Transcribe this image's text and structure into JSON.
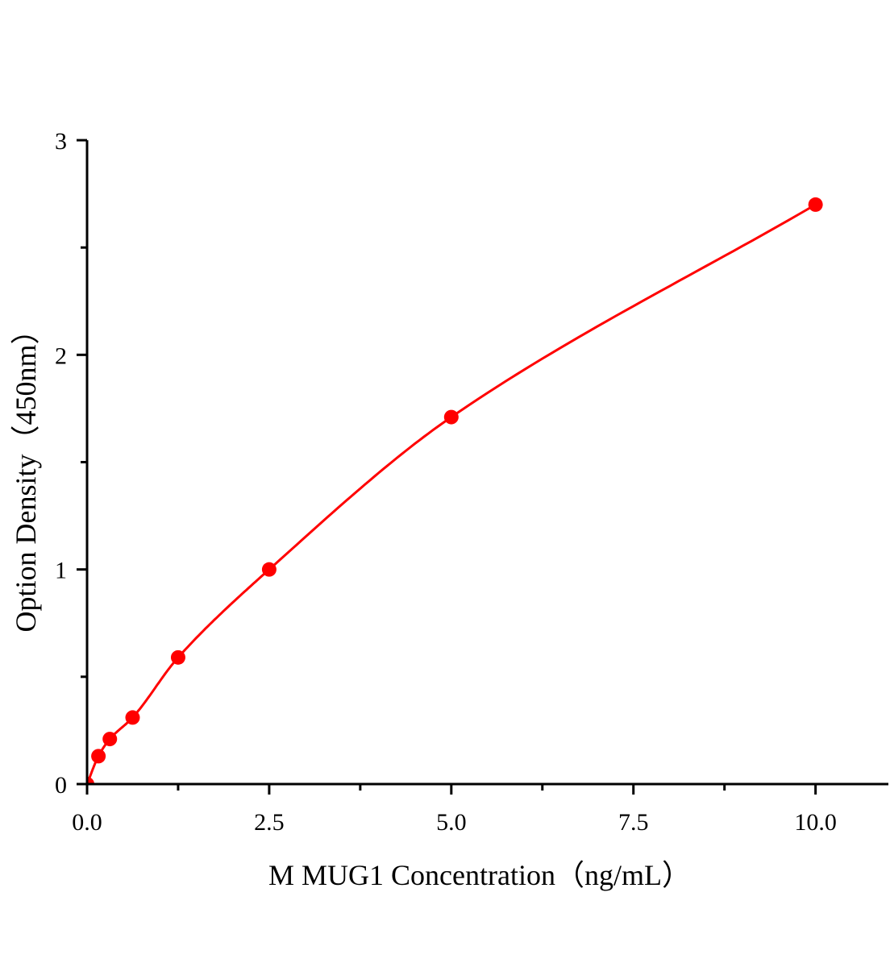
{
  "chart_data": {
    "type": "scatter",
    "title": "",
    "xlabel": "M MUG1 Concentration（ng/mL）",
    "ylabel": "Option Density（450nm）",
    "xlim": [
      0,
      11
    ],
    "ylim": [
      0,
      3
    ],
    "x_ticks": [
      "0.0",
      "2.5",
      "5.0",
      "7.5",
      "10.0"
    ],
    "x_tick_values": [
      0,
      2.5,
      5,
      7.5,
      10
    ],
    "x_minor_tick_values": [
      1.25,
      3.75,
      6.25,
      8.75
    ],
    "y_ticks": [
      "0",
      "1",
      "2",
      "3"
    ],
    "y_tick_values": [
      0,
      1,
      2,
      3
    ],
    "y_minor_tick_values": [
      0.5,
      1.5,
      2.5
    ],
    "grid": false,
    "legend": "none",
    "color": "#ff0000",
    "fit_curve": true,
    "series": [
      {
        "x": [
          0,
          0.156,
          0.3125,
          0.625,
          1.25,
          2.5,
          5,
          10
        ],
        "y": [
          0,
          0.13,
          0.21,
          0.31,
          0.59,
          1.0,
          1.71,
          2.7
        ]
      }
    ]
  }
}
